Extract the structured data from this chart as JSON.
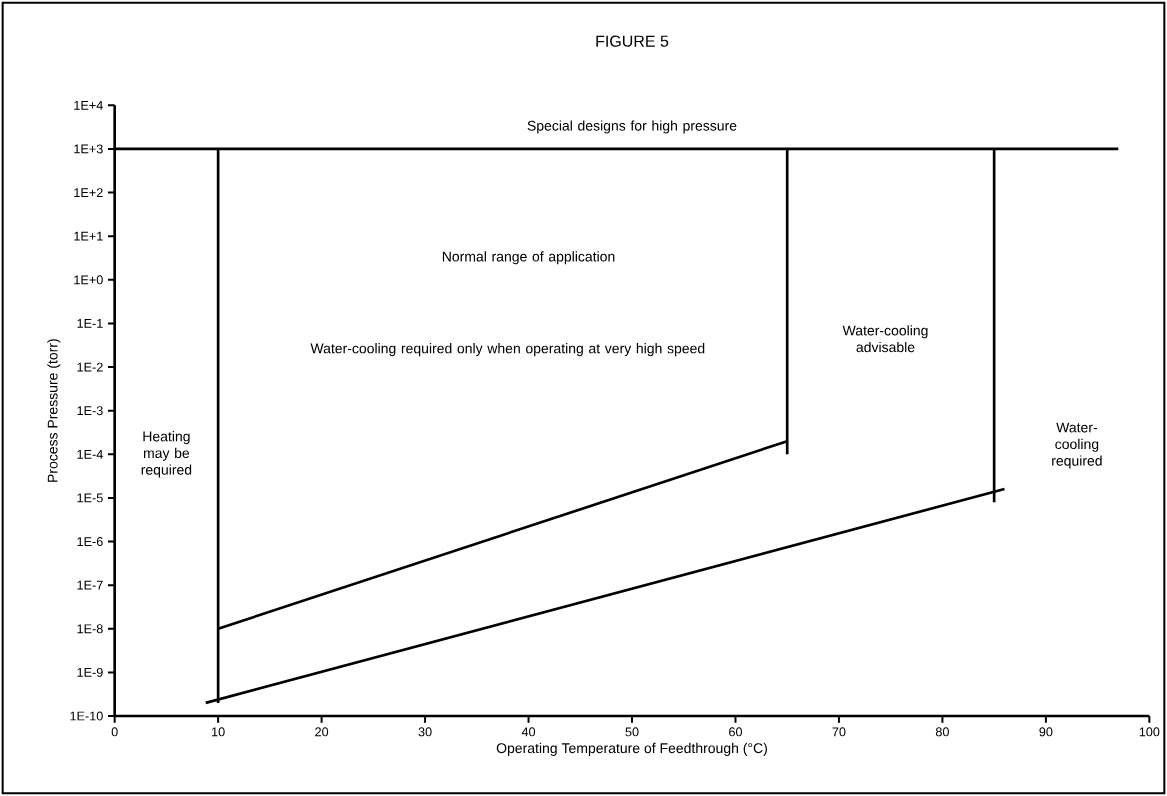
{
  "chart_data": {
    "type": "line",
    "title": "FIGURE 5",
    "xlabel": "Operating Temperature of Feedthrough (°C)",
    "ylabel": "Process Pressure (torr)",
    "xlim": [
      0,
      100
    ],
    "xticks": [
      0,
      10,
      20,
      30,
      40,
      50,
      60,
      70,
      80,
      90,
      100
    ],
    "ylim": [
      1e-10,
      10000
    ],
    "yticks": [
      {
        "value": 1e-10,
        "label": "1E-10"
      },
      {
        "value": 1e-09,
        "label": "1E-9"
      },
      {
        "value": 1e-08,
        "label": "1E-8"
      },
      {
        "value": 1e-07,
        "label": "1E-7"
      },
      {
        "value": 1e-06,
        "label": "1E-6"
      },
      {
        "value": 1e-05,
        "label": "1E-5"
      },
      {
        "value": 0.0001,
        "label": "1E-4"
      },
      {
        "value": 0.001,
        "label": "1E-3"
      },
      {
        "value": 0.01,
        "label": "1E-2"
      },
      {
        "value": 0.1,
        "label": "1E-1"
      },
      {
        "value": 1,
        "label": "1E+0"
      },
      {
        "value": 10,
        "label": "1E+1"
      },
      {
        "value": 100,
        "label": "1E+2"
      },
      {
        "value": 1000,
        "label": "1E+3"
      },
      {
        "value": 10000,
        "label": "1E+4"
      }
    ],
    "log": "y",
    "grid": false,
    "marker": "none",
    "line_style": "solid",
    "series": [
      {
        "color": "#000000",
        "x": [
          0,
          97
        ],
        "values": [
          1000,
          1000
        ]
      },
      {
        "color": "#000000",
        "x": [
          10,
          10
        ],
        "values": [
          2e-10,
          1000
        ]
      },
      {
        "color": "#000000",
        "x": [
          65,
          65
        ],
        "values": [
          0.0001,
          1000
        ]
      },
      {
        "color": "#000000",
        "x": [
          85,
          85
        ],
        "values": [
          8e-06,
          1000
        ]
      },
      {
        "color": "#000000",
        "x": [
          10,
          65
        ],
        "values": [
          1e-08,
          0.0002
        ]
      },
      {
        "color": "#000000",
        "x": [
          8.8,
          86
        ],
        "values": [
          2e-10,
          1.6e-05
        ]
      }
    ],
    "annotations": [
      "Special designs for high pressure",
      "Normal range of application",
      "Water-cooling required only when operating at very high speed",
      "Water-cooling advisable",
      "Heating may be required",
      "Water-cooling required"
    ]
  }
}
